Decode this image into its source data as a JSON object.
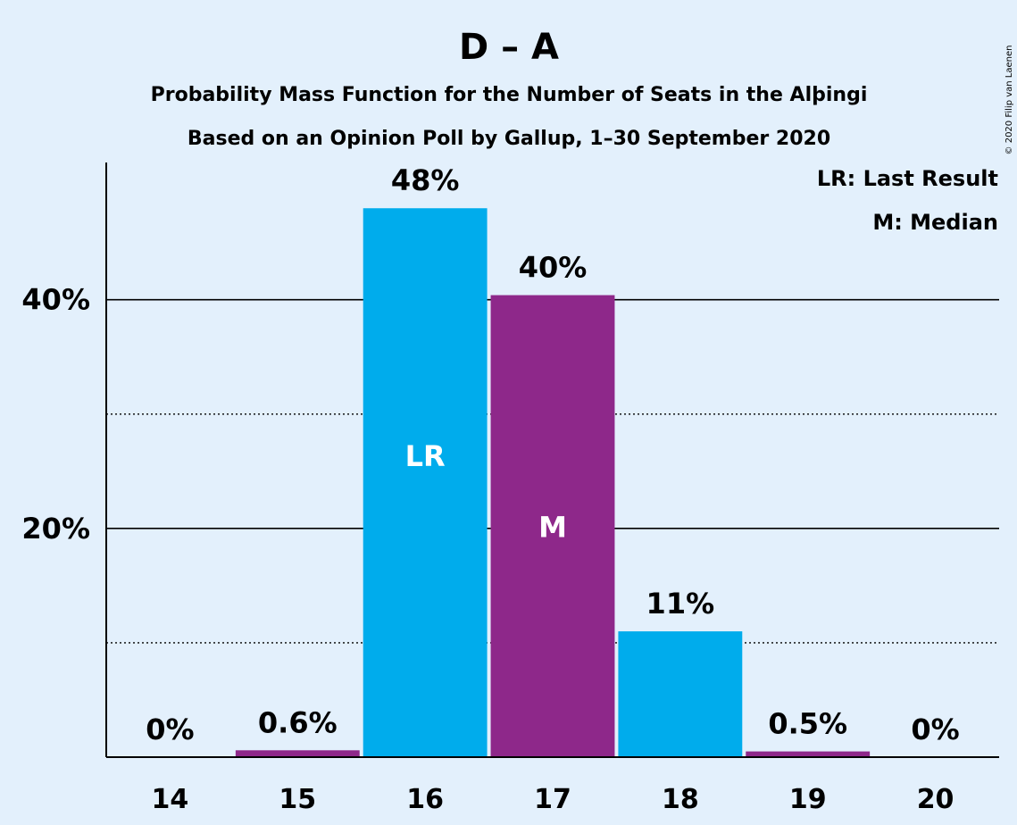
{
  "chart_data": {
    "type": "bar",
    "title": "D – A",
    "subtitle_1": "Probability Mass Function for the Number of Seats in the Alþingi",
    "subtitle_2": "Based on an Opinion Poll by Gallup, 1–30 September 2020",
    "categories": [
      "14",
      "15",
      "16",
      "17",
      "18",
      "19",
      "20"
    ],
    "values": [
      0,
      0.6,
      48,
      40.4,
      11,
      0.5,
      0
    ],
    "value_labels": [
      "0%",
      "0.6%",
      "48%",
      "40%",
      "11%",
      "0.5%",
      "0%"
    ],
    "bar_colors": [
      "#8e288a",
      "#8e288a",
      "#00acec",
      "#8e288a",
      "#00acec",
      "#8e288a",
      "#8e288a"
    ],
    "in_bar_labels": [
      "",
      "",
      "LR",
      "M",
      "",
      "",
      ""
    ],
    "ylim": [
      0,
      52
    ],
    "yticks": [
      20,
      40
    ],
    "ytick_labels": [
      "20%",
      "40%"
    ],
    "minor_gridlines": [
      10,
      30
    ],
    "grid": true,
    "legend_position": "top-right",
    "legend": [
      "LR: Last Result",
      "M: Median"
    ],
    "copyright": "© 2020 Filip van Laenen",
    "colors": {
      "blue": "#00acec",
      "purple": "#8e288a",
      "background": "#e3f0fc",
      "text": "#1a1a1a"
    }
  }
}
